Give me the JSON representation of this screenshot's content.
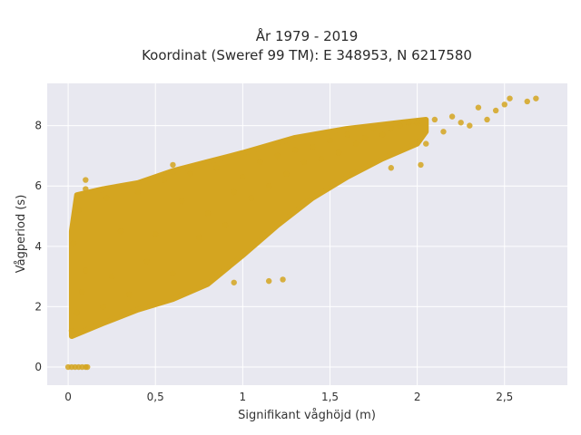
{
  "chart_data": {
    "type": "scatter",
    "title_line1": "År 1979 - 2019",
    "title_line2": "Koordinat (Sweref 99 TM): E 348953, N 6217580",
    "xlabel": "Signifikant våghöjd (m)",
    "ylabel": "Vågperiod (s)",
    "xlim": [
      -0.12,
      2.86
    ],
    "ylim": [
      -0.6,
      9.4
    ],
    "x_ticks": [
      0,
      0.5,
      1,
      1.5,
      2,
      2.5
    ],
    "x_tick_labels": [
      "0",
      "0,5",
      "1",
      "1,5",
      "2",
      "2,5"
    ],
    "y_ticks": [
      0,
      2,
      4,
      6,
      8
    ],
    "y_tick_labels": [
      "0",
      "2",
      "4",
      "6",
      "8"
    ],
    "grid": true,
    "colors": {
      "marker": "#d4a520",
      "plot_bg": "#e8e8f0",
      "grid": "#ffffff"
    },
    "series": [
      {
        "points": [
          [
            0,
            0
          ],
          [
            0.02,
            0
          ],
          [
            0.04,
            0
          ],
          [
            0.06,
            0
          ],
          [
            0.08,
            0
          ],
          [
            0.1,
            0
          ],
          [
            0.11,
            0
          ],
          [
            0.02,
            1.2
          ],
          [
            0.05,
            1.8
          ],
          [
            0.08,
            2.5
          ],
          [
            0.1,
            3.2
          ],
          [
            0.03,
            4.1
          ],
          [
            0.06,
            5.2
          ],
          [
            0.1,
            5.9
          ],
          [
            0.2,
            2.0
          ],
          [
            0.25,
            3.0
          ],
          [
            0.3,
            4.5
          ],
          [
            0.22,
            5.6
          ],
          [
            0.35,
            2.4
          ],
          [
            0.4,
            5.8
          ],
          [
            0.45,
            3.5
          ],
          [
            0.5,
            4.4
          ],
          [
            0.55,
            6.2
          ],
          [
            0.6,
            3.1
          ],
          [
            0.65,
            5.5
          ],
          [
            0.7,
            6.4
          ],
          [
            0.75,
            4.3
          ],
          [
            0.8,
            5.1
          ],
          [
            0.85,
            6.6
          ],
          [
            0.9,
            4.7
          ],
          [
            0.95,
            5.8
          ],
          [
            1.0,
            6.3
          ],
          [
            1.05,
            5.6
          ],
          [
            1.1,
            6.8
          ],
          [
            1.15,
            6.0
          ],
          [
            1.2,
            7.0
          ],
          [
            1.25,
            6.4
          ],
          [
            1.3,
            7.2
          ],
          [
            1.35,
            6.8
          ],
          [
            1.4,
            7.3
          ],
          [
            1.45,
            6.9
          ],
          [
            1.5,
            7.5
          ],
          [
            1.55,
            7.1
          ],
          [
            1.6,
            7.7
          ],
          [
            1.65,
            7.4
          ],
          [
            1.7,
            7.6
          ],
          [
            1.75,
            7.9
          ],
          [
            1.8,
            7.7
          ],
          [
            1.85,
            7.9
          ],
          [
            1.9,
            8.0
          ],
          [
            1.95,
            8.1
          ],
          [
            2.0,
            8.1
          ],
          [
            2.05,
            7.4
          ],
          [
            2.1,
            8.2
          ],
          [
            2.15,
            7.8
          ],
          [
            2.2,
            8.3
          ],
          [
            2.25,
            8.1
          ],
          [
            2.3,
            8.0
          ],
          [
            2.35,
            8.6
          ],
          [
            2.4,
            8.2
          ],
          [
            2.45,
            8.5
          ],
          [
            2.5,
            8.7
          ],
          [
            2.53,
            8.9
          ],
          [
            2.63,
            8.8
          ],
          [
            2.68,
            8.9
          ],
          [
            2.02,
            6.7
          ],
          [
            1.85,
            6.6
          ],
          [
            1.15,
            2.85
          ],
          [
            1.23,
            2.9
          ],
          [
            0.95,
            2.8
          ],
          [
            0.1,
            6.2
          ],
          [
            0.6,
            6.7
          ]
        ]
      }
    ]
  }
}
